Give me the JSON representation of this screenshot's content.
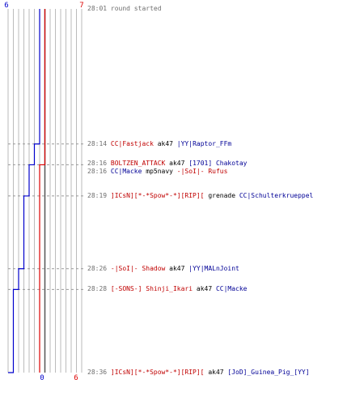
{
  "teams": {
    "left": {
      "start_score": "6",
      "end_score": "0",
      "color": "#0000cc"
    },
    "right": {
      "start_score": "7",
      "end_score": "6",
      "color": "#dd0000"
    }
  },
  "colors": {
    "grid": "#bbbbbb",
    "dashed": "#999999",
    "time": "#666666",
    "blue_text": "#000096",
    "red_text": "#c00000"
  },
  "timeline": {
    "start": "28:01",
    "end": "28:36"
  },
  "chart_data": {
    "type": "line",
    "xlabel": "",
    "ylabel": "",
    "series": [
      {
        "color": "#0000cc",
        "points": [
          [
            "28:01",
            6
          ],
          [
            "28:14",
            5
          ],
          [
            "28:16",
            4
          ],
          [
            "28:19",
            3
          ],
          [
            "28:26",
            2
          ],
          [
            "28:28",
            1
          ],
          [
            "28:36",
            0
          ]
        ]
      },
      {
        "color": "#dd0000",
        "points": [
          [
            "28:01",
            7
          ],
          [
            "28:16",
            6
          ],
          [
            "28:36",
            6
          ]
        ]
      }
    ]
  },
  "events": [
    {
      "id": "e0",
      "time": "28:01",
      "parts": [
        {
          "text": "round started",
          "color": "time"
        }
      ]
    },
    {
      "id": "e1",
      "time": "28:14",
      "parts": [
        {
          "text": "CC|Fastjack",
          "color": "red"
        },
        {
          "text": " ak47 ",
          "color": "blk"
        },
        {
          "text": "|YY|Raptor_FFm",
          "color": "blue"
        }
      ]
    },
    {
      "id": "e2",
      "time": "28:16",
      "parts": [
        {
          "text": "BOLTZEN_ATTACK",
          "color": "red"
        },
        {
          "text": " ak47 ",
          "color": "blk"
        },
        {
          "text": "[1701] Chakotay",
          "color": "blue"
        }
      ]
    },
    {
      "id": "e3",
      "time": "28:16",
      "parts": [
        {
          "text": "CC|Macke",
          "color": "blue"
        },
        {
          "text": " mp5navy ",
          "color": "blk"
        },
        {
          "text": "-|SoI|- Rufus",
          "color": "red"
        }
      ]
    },
    {
      "id": "e4",
      "time": "28:19",
      "parts": [
        {
          "text": "]ICsN][*-*Spow*-*][RIP][",
          "color": "red"
        },
        {
          "text": " grenade ",
          "color": "blk"
        },
        {
          "text": "CC|Schulterkrueppel",
          "color": "blue"
        }
      ]
    },
    {
      "id": "e5",
      "time": "28:26",
      "parts": [
        {
          "text": "-|SoI|- Shadow",
          "color": "red"
        },
        {
          "text": " ak47 ",
          "color": "blk"
        },
        {
          "text": "|YY|MALnJoint",
          "color": "blue"
        }
      ]
    },
    {
      "id": "e6",
      "time": "28:28",
      "parts": [
        {
          "text": "[-SONS-] Shinji_Ikari",
          "color": "red"
        },
        {
          "text": " ak47 ",
          "color": "blk"
        },
        {
          "text": "CC|Macke",
          "color": "blue"
        }
      ]
    },
    {
      "id": "e7",
      "time": "28:36",
      "parts": [
        {
          "text": "]ICsN][*-*Spow*-*][RIP][",
          "color": "red"
        },
        {
          "text": " ak47 ",
          "color": "blk"
        },
        {
          "text": "[JoD]_Guinea_Pig_[YY]",
          "color": "blue"
        }
      ]
    }
  ]
}
